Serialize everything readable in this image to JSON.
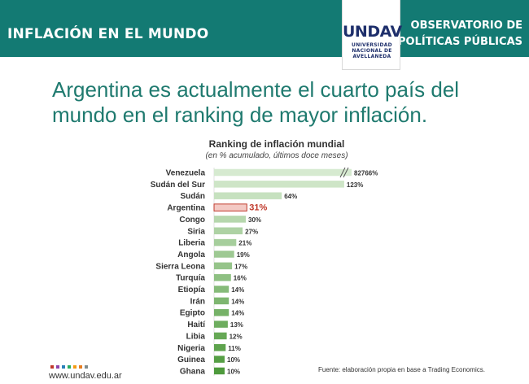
{
  "header": {
    "section_title": "INFLACIÓN EN EL MUNDO",
    "org_title_line1": "OBSERVATORIO DE",
    "org_title_line2": "POLÍTICAS PÚBLICAS",
    "logo_word": "UNDAV",
    "logo_sub_line1": "UNIVERSIDAD",
    "logo_sub_line2": "NACIONAL DE",
    "logo_sub_line3": "AVELLANEDA"
  },
  "headline": "Argentina es actualmente el cuarto país del mundo en el ranking de mayor inflación.",
  "colors": {
    "brand_teal": "#137a73",
    "headline_green": "#1f7a6f",
    "highlight_red": "#c0392b",
    "bar_light": "#d6ead0",
    "bar_dark": "#4e9a3c"
  },
  "chart_data": {
    "type": "bar",
    "orientation": "horizontal",
    "title": "Ranking de inflación mundial",
    "subtitle": "(en % acumulado, últimos doce meses)",
    "categories": [
      "Venezuela",
      "Sudán del Sur",
      "Sudán",
      "Argentina",
      "Congo",
      "Siria",
      "Liberia",
      "Angola",
      "Sierra Leona",
      "Turquía",
      "Etiopía",
      "Irán",
      "Egipto",
      "Haití",
      "Libia",
      "Nigeria",
      "Guinea",
      "Ghana"
    ],
    "values": [
      82766,
      123,
      64,
      31,
      30,
      27,
      21,
      19,
      17,
      16,
      14,
      14,
      14,
      13,
      12,
      11,
      10,
      10
    ],
    "labels": [
      "82766%",
      "123%",
      "64%",
      "31%",
      "30%",
      "27%",
      "21%",
      "19%",
      "17%",
      "16%",
      "14%",
      "14%",
      "14%",
      "13%",
      "12%",
      "11%",
      "10%",
      "10%"
    ],
    "highlight": "Argentina",
    "axis_break": "Venezuela",
    "xlim": [
      0,
      130
    ],
    "grid": false,
    "legend": "none"
  },
  "footer": {
    "website": "www.undav.edu.ar",
    "source": "Fuente: elaboración propia en base a Trading Economics.",
    "dot_colors": [
      "#c0392b",
      "#8e44ad",
      "#2980b9",
      "#27ae60",
      "#f39c12",
      "#e67e22",
      "#7f8c8d"
    ]
  }
}
